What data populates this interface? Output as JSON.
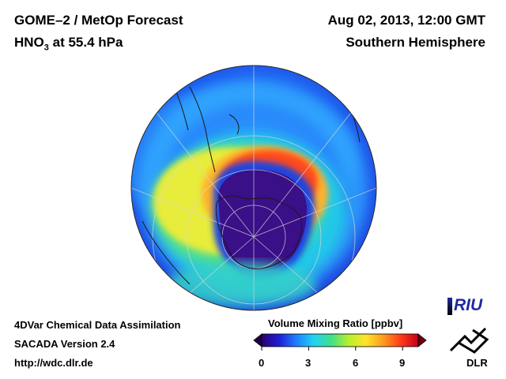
{
  "header": {
    "title": "GOME–2 / MetOp Forecast",
    "species": "HNO",
    "species_sub": "3",
    "species_rest": " at 55.4 hPa",
    "date": "Aug 02, 2013, 12:00 GMT",
    "region": "Southern Hemisphere"
  },
  "footer": {
    "line1": "4DVar Chemical Data Assimilation",
    "line2": "SACADA Version 2.4",
    "line3": "http://wdc.dlr.de"
  },
  "colorbar": {
    "title": "Volume Mixing Ratio [ppbv]",
    "range": [
      0,
      10
    ],
    "ticks": [
      "0",
      "3",
      "6",
      "9"
    ],
    "colors": [
      "#2a0070",
      "#1f1fd6",
      "#1f7fff",
      "#22d3f0",
      "#3fe08a",
      "#b8ef2f",
      "#ffe32a",
      "#ff9a1f",
      "#ff3a1a",
      "#c4001a"
    ]
  },
  "logos": {
    "riu": "RIU",
    "dlr": "DLR"
  },
  "map": {
    "projection": "orthographic, south pole centered",
    "colors": {
      "background_blue": "#1f70ff",
      "vortex_core": "#3a0f88",
      "collar_cyan": "#22d3f0",
      "collar_yellow": "#f4ea2a",
      "collar_red": "#ff4a1a",
      "coastline": "#1a1a1a",
      "grid": "#d9d9d9"
    }
  }
}
